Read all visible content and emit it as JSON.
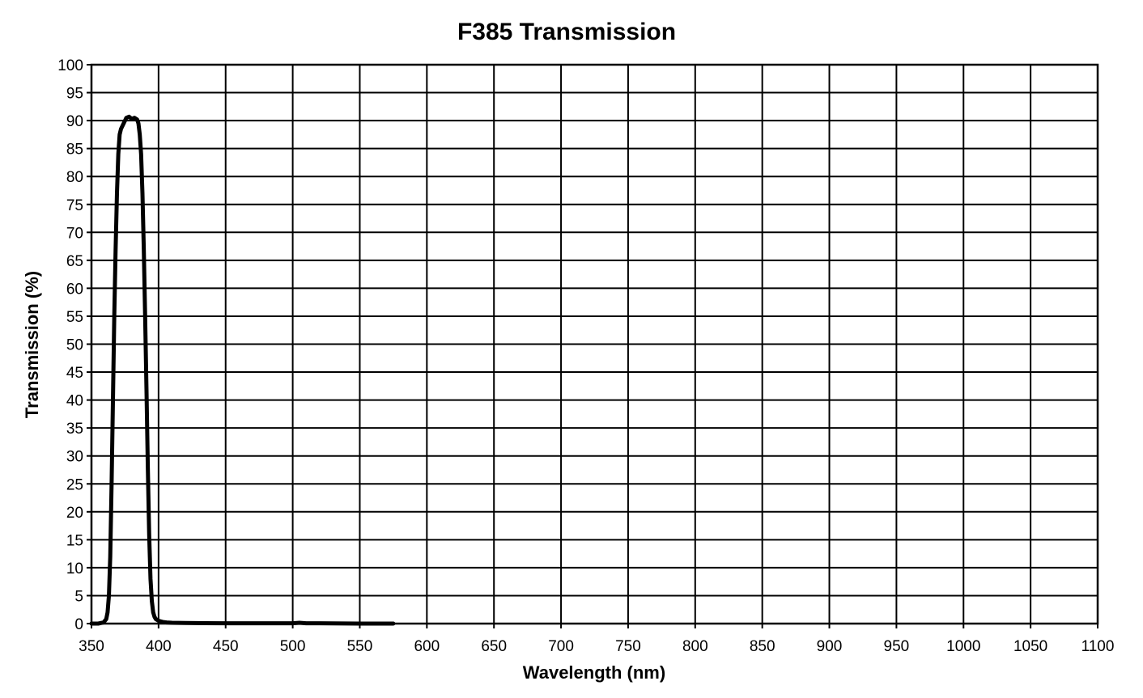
{
  "chart_data": {
    "type": "line",
    "title": "F385 Transmission",
    "xlabel": "Wavelength (nm)",
    "ylabel": "Transmission (%)",
    "xlim": [
      350,
      1100
    ],
    "ylim": [
      0,
      100
    ],
    "xticks": [
      350,
      400,
      450,
      500,
      550,
      600,
      650,
      700,
      750,
      800,
      850,
      900,
      950,
      1000,
      1050,
      1100
    ],
    "yticks": [
      0,
      5,
      10,
      15,
      20,
      25,
      30,
      35,
      40,
      45,
      50,
      55,
      60,
      65,
      70,
      75,
      80,
      85,
      90,
      95,
      100
    ],
    "grid": true,
    "legend": "none",
    "series": [
      {
        "color": "#000000",
        "x": [
          350,
          355,
          359,
          361,
          362,
          363,
          364,
          365,
          366,
          367,
          368,
          369,
          370,
          371,
          372,
          374,
          376,
          378,
          380,
          382,
          384,
          385,
          386,
          387,
          388,
          389,
          390,
          391,
          392,
          393,
          394,
          395,
          396,
          397,
          398,
          400,
          403,
          406,
          410,
          420,
          450,
          500,
          505,
          510,
          520,
          550,
          575
        ],
        "y": [
          0,
          0,
          0.2,
          0.8,
          2,
          5,
          12,
          25,
          40,
          55,
          67,
          77,
          84,
          87.5,
          88.5,
          89.5,
          90.5,
          90.7,
          90.3,
          90.5,
          90.2,
          89.5,
          87.5,
          84,
          77,
          67,
          55,
          42,
          28,
          16,
          8,
          4,
          2,
          1.2,
          0.8,
          0.5,
          0.3,
          0.2,
          0.15,
          0.1,
          0.05,
          0.05,
          0.15,
          0.05,
          0.05,
          0,
          0
        ]
      }
    ]
  }
}
